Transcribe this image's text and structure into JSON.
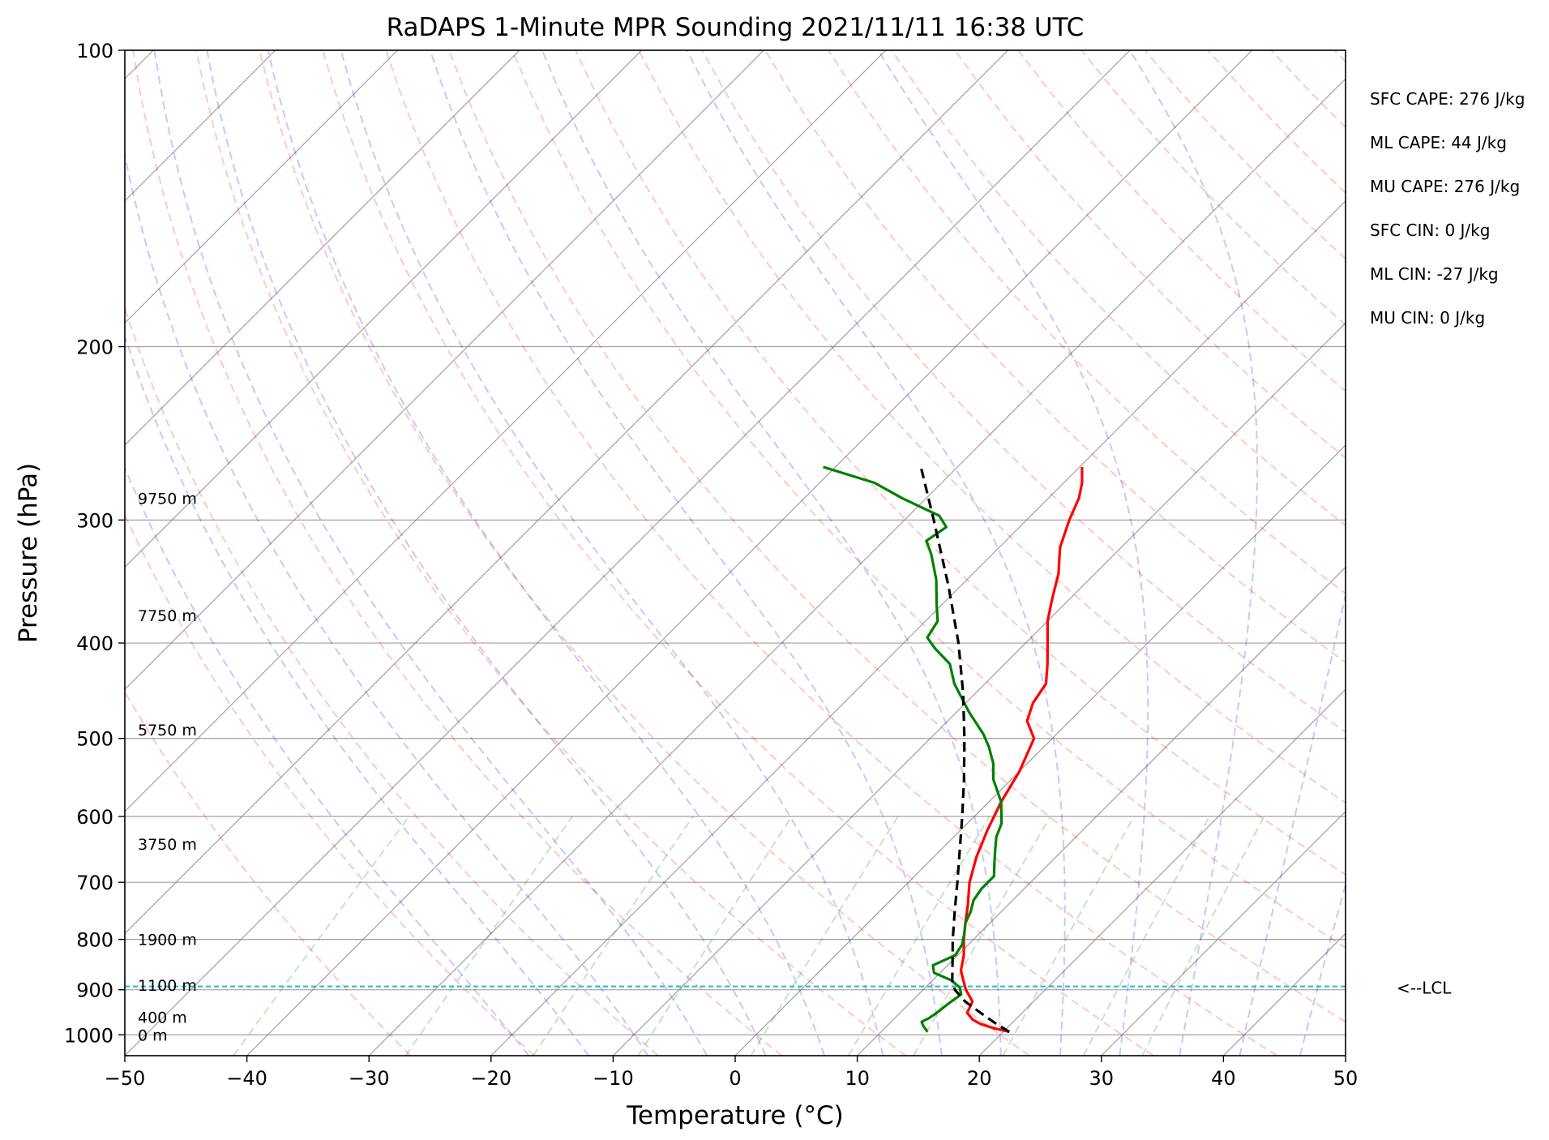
{
  "chart_data": {
    "type": "line",
    "subtype": "skew-t log-p sounding",
    "title": "RaDAPS 1-Minute MPR Sounding 2021/11/11 16:38 UTC",
    "xlabel": "Temperature (°C)",
    "ylabel": "Pressure (hPa)",
    "xlim": [
      -50,
      50
    ],
    "ylim": [
      1050,
      100
    ],
    "y_scale": "log",
    "skew_degrees": 45,
    "grid": true,
    "x_ticks": [
      -50,
      -40,
      -30,
      -20,
      -10,
      0,
      10,
      20,
      30,
      40,
      50
    ],
    "x_tick_labels": [
      "−50",
      "−40",
      "−30",
      "−20",
      "−10",
      "0",
      "10",
      "20",
      "30",
      "40",
      "50"
    ],
    "y_ticks": [
      100,
      200,
      300,
      400,
      500,
      600,
      700,
      800,
      900,
      1000
    ],
    "y_tick_labels": [
      "100",
      "200",
      "300",
      "400",
      "500",
      "600",
      "700",
      "800",
      "900",
      "1000"
    ],
    "height_labels": [
      {
        "label": "0 m",
        "pressure": 1000
      },
      {
        "label": "400 m",
        "pressure": 960
      },
      {
        "label": "1100 m",
        "pressure": 890
      },
      {
        "label": "1900 m",
        "pressure": 800
      },
      {
        "label": "3750 m",
        "pressure": 640
      },
      {
        "label": "5750 m",
        "pressure": 490
      },
      {
        "label": "7750 m",
        "pressure": 375
      },
      {
        "label": "9750 m",
        "pressure": 285
      }
    ],
    "stats": [
      "SFC CAPE: 276 J/kg",
      "ML CAPE: 44 J/kg",
      "MU CAPE: 276 J/kg",
      "SFC CIN: 0 J/kg",
      "ML CIN: -27 J/kg",
      "MU CIN: 0 J/kg"
    ],
    "lcl": {
      "label": "<--LCL",
      "pressure": 893,
      "color": "#17becf"
    },
    "colors": {
      "temperature": "#ff0000",
      "dewpoint": "#008000",
      "parcel": "#000000",
      "dry_adiabat": "#ff0000",
      "moist_adiabat": "#0000ff",
      "mixing_ratio": "#008000",
      "isotherm": "#808080",
      "isobar": "#808080"
    },
    "series": [
      {
        "key": "temperature",
        "style": "solid",
        "points": [
          [
            993,
            20.5
          ],
          [
            985,
            19.0
          ],
          [
            975,
            17.5
          ],
          [
            965,
            16.5
          ],
          [
            950,
            15.5
          ],
          [
            925,
            15.0
          ],
          [
            900,
            13.5
          ],
          [
            880,
            12.5
          ],
          [
            860,
            11.5
          ],
          [
            830,
            10.5
          ],
          [
            800,
            9.2
          ],
          [
            770,
            8.0
          ],
          [
            740,
            6.8
          ],
          [
            700,
            5.0
          ],
          [
            660,
            3.5
          ],
          [
            620,
            2.2
          ],
          [
            580,
            1.0
          ],
          [
            540,
            0.0
          ],
          [
            500,
            -1.5
          ],
          [
            480,
            -3.5
          ],
          [
            460,
            -4.5
          ],
          [
            440,
            -5.0
          ],
          [
            420,
            -6.5
          ],
          [
            400,
            -8.2
          ],
          [
            380,
            -10.0
          ],
          [
            360,
            -11.5
          ],
          [
            340,
            -13.0
          ],
          [
            320,
            -15.0
          ],
          [
            300,
            -16.5
          ],
          [
            285,
            -17.5
          ],
          [
            275,
            -18.5
          ],
          [
            265,
            -19.8
          ]
        ]
      },
      {
        "key": "dewpoint",
        "style": "solid",
        "points": [
          [
            993,
            13.8
          ],
          [
            980,
            13.0
          ],
          [
            970,
            12.5
          ],
          [
            962,
            12.8
          ],
          [
            950,
            13.0
          ],
          [
            930,
            13.2
          ],
          [
            910,
            13.5
          ],
          [
            895,
            12.8
          ],
          [
            880,
            11.5
          ],
          [
            865,
            9.5
          ],
          [
            850,
            8.8
          ],
          [
            830,
            9.8
          ],
          [
            810,
            9.5
          ],
          [
            790,
            8.8
          ],
          [
            770,
            8.0
          ],
          [
            750,
            7.5
          ],
          [
            730,
            6.8
          ],
          [
            710,
            6.5
          ],
          [
            690,
            6.5
          ],
          [
            670,
            5.5
          ],
          [
            650,
            4.5
          ],
          [
            630,
            3.5
          ],
          [
            610,
            2.8
          ],
          [
            580,
            1.0
          ],
          [
            550,
            -1.5
          ],
          [
            530,
            -2.8
          ],
          [
            510,
            -4.5
          ],
          [
            495,
            -6.0
          ],
          [
            470,
            -9.0
          ],
          [
            440,
            -12.5
          ],
          [
            420,
            -14.5
          ],
          [
            405,
            -17.0
          ],
          [
            395,
            -18.5
          ],
          [
            380,
            -19.0
          ],
          [
            365,
            -20.5
          ],
          [
            345,
            -22.5
          ],
          [
            325,
            -25.0
          ],
          [
            315,
            -26.5
          ],
          [
            305,
            -26.0
          ],
          [
            297,
            -27.5
          ],
          [
            285,
            -32.0
          ],
          [
            275,
            -35.5
          ],
          [
            265,
            -41.0
          ]
        ]
      },
      {
        "key": "parcel",
        "style": "dashed",
        "points": [
          [
            993,
            20.5
          ],
          [
            975,
            18.8
          ],
          [
            950,
            16.6
          ],
          [
            925,
            14.4
          ],
          [
            900,
            12.6
          ],
          [
            880,
            11.6
          ],
          [
            850,
            10.4
          ],
          [
            800,
            8.3
          ],
          [
            750,
            6.2
          ],
          [
            700,
            4.0
          ],
          [
            650,
            1.6
          ],
          [
            600,
            -1.0
          ],
          [
            550,
            -3.9
          ],
          [
            500,
            -7.2
          ],
          [
            450,
            -11.0
          ],
          [
            400,
            -15.5
          ],
          [
            350,
            -21.0
          ],
          [
            300,
            -27.6
          ],
          [
            265,
            -33.0
          ]
        ]
      }
    ]
  }
}
